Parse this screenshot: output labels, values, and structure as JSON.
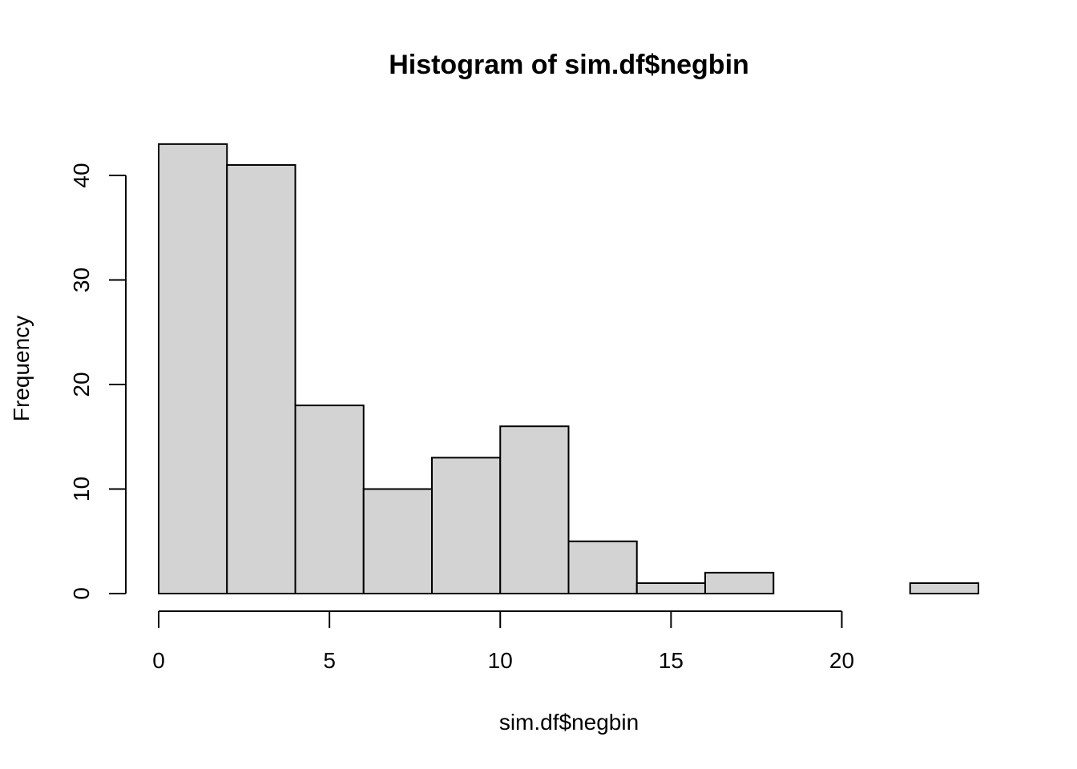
{
  "chart_data": {
    "type": "bar",
    "title": "Histogram of sim.df$negbin",
    "xlabel": "sim.df$negbin",
    "ylabel": "Frequency",
    "bin_edges": [
      0,
      2,
      4,
      6,
      8,
      10,
      12,
      14,
      16,
      18,
      20,
      22,
      24
    ],
    "values": [
      43,
      41,
      18,
      10,
      13,
      16,
      5,
      1,
      2,
      0,
      0,
      1
    ],
    "x_ticks": [
      "0",
      "5",
      "10",
      "15",
      "20"
    ],
    "y_ticks": [
      "0",
      "10",
      "20",
      "30",
      "40"
    ],
    "xlim": [
      0,
      24
    ],
    "ylim": [
      0,
      43
    ],
    "grid": false,
    "bar_fill": "#d3d3d3",
    "bar_stroke": "#000000"
  }
}
